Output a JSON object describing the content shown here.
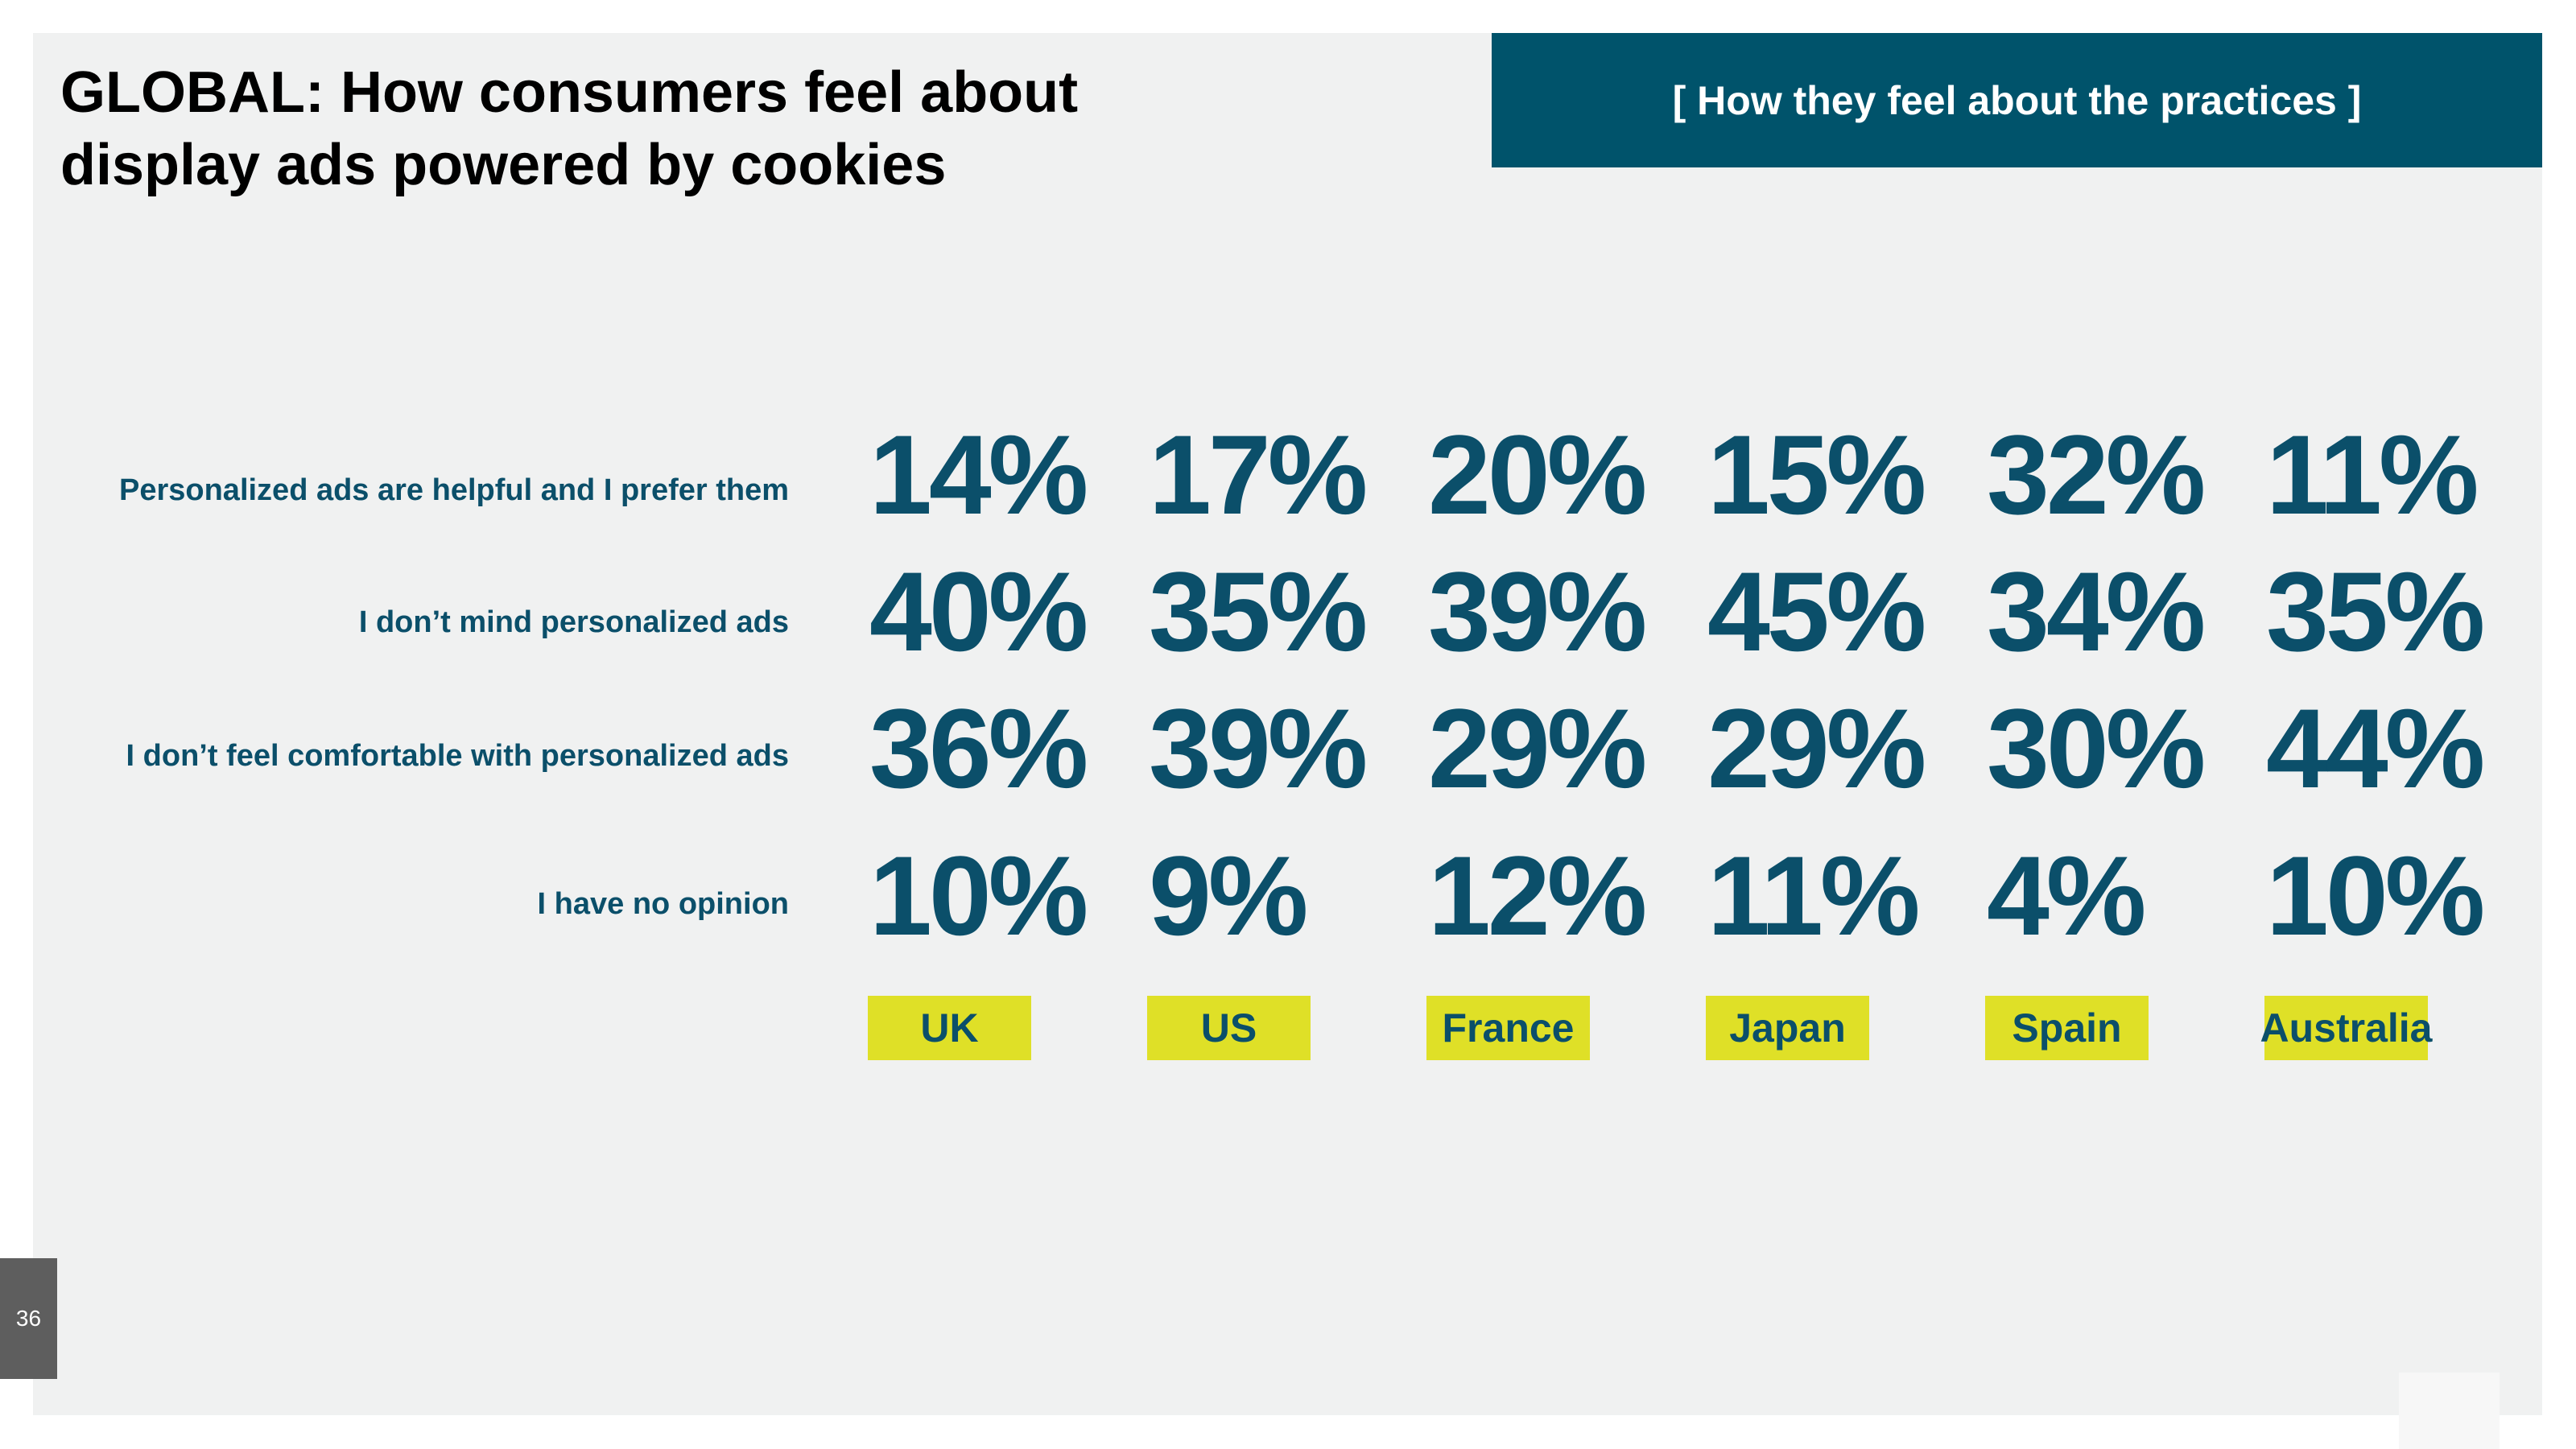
{
  "header": {
    "title_line1": "GLOBAL: How consumers feel about",
    "title_line2": "display ads powered by cookies",
    "tag": "[ How they feel about the practices ]"
  },
  "page_number": "36",
  "colors": {
    "accent_teal": "#00536b",
    "value_text": "#0b4f6a",
    "country_highlight": "#dfe027",
    "background": "#f0f1f1"
  },
  "chart_data": {
    "type": "table",
    "categories": [
      "UK",
      "US",
      "France",
      "Japan",
      "Spain",
      "Australia"
    ],
    "rows": [
      {
        "label": "Personalized ads are helpful and I prefer them",
        "values": [
          "14%",
          "17%",
          "20%",
          "15%",
          "32%",
          "11%"
        ]
      },
      {
        "label": "I don’t mind personalized ads",
        "values": [
          "40%",
          "35%",
          "39%",
          "45%",
          "34%",
          "35%"
        ]
      },
      {
        "label": "I don’t feel comfortable with personalized ads",
        "values": [
          "36%",
          "39%",
          "29%",
          "29%",
          "30%",
          "44%"
        ]
      },
      {
        "label": "I have no opinion",
        "values": [
          "10%",
          "9%",
          "12%",
          "11%",
          "4%",
          "10%"
        ]
      }
    ]
  }
}
